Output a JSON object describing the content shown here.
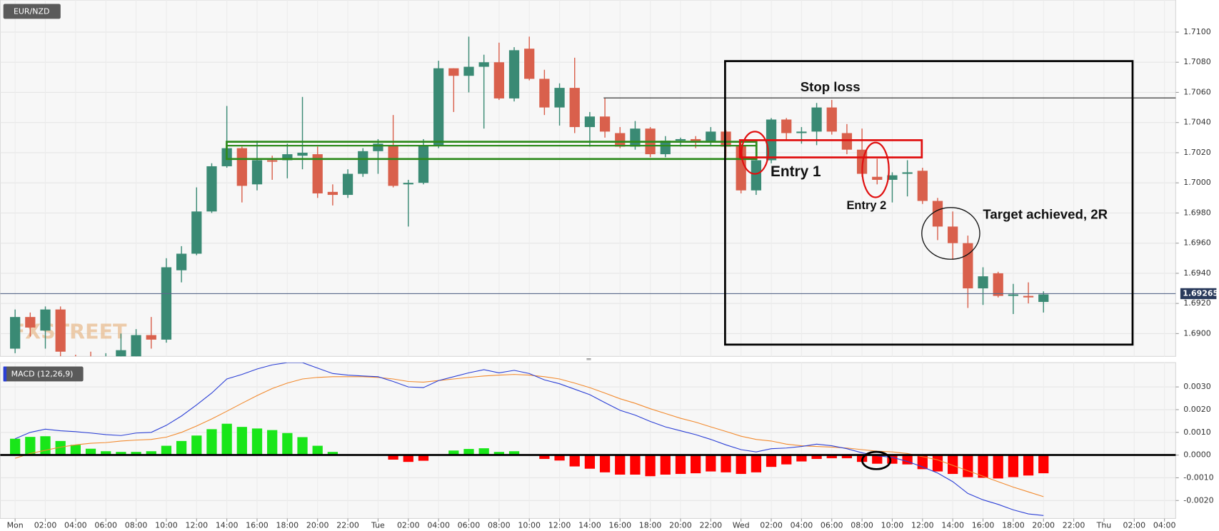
{
  "chart_data": [
    {
      "type": "candlestick",
      "symbol": "EUR/NZD",
      "watermark": "FXSTREET",
      "x": [
        0,
        1,
        2,
        3,
        4,
        5,
        6,
        7,
        8,
        9,
        10,
        11,
        12,
        13,
        14,
        15,
        16,
        17,
        18,
        19,
        20,
        21,
        22,
        23,
        24,
        25,
        26,
        27,
        28,
        29,
        30,
        31,
        32,
        33,
        34,
        35,
        36,
        37,
        38,
        39,
        40,
        41,
        42,
        43,
        44,
        45,
        46,
        47,
        48,
        49,
        50,
        51,
        52,
        53,
        54,
        55,
        56,
        57,
        58,
        59,
        60,
        61,
        62,
        63,
        64,
        65,
        66,
        67,
        68
      ],
      "open": [
        1.689,
        1.6911,
        1.6902,
        1.6916,
        1.6884,
        1.6882,
        1.6878,
        1.688,
        1.6884,
        1.6899,
        1.6896,
        1.6942,
        1.6953,
        1.6981,
        1.7011,
        1.7023,
        1.6999,
        1.7015,
        1.7015,
        1.7018,
        1.7019,
        1.6994,
        1.6992,
        1.7006,
        1.7021,
        1.7025,
        1.6999,
        1.7,
        1.7025,
        1.7076,
        1.7071,
        1.7077,
        1.708,
        1.7056,
        1.7089,
        1.7069,
        1.705,
        1.7063,
        1.7037,
        1.7044,
        1.7033,
        1.7024,
        1.7036,
        1.7019,
        1.7028,
        1.7029,
        1.7027,
        1.7034,
        1.7025,
        1.6995,
        1.7015,
        1.7042,
        1.7033,
        1.7034,
        1.705,
        1.7033,
        1.7022,
        1.7004,
        1.7002,
        1.7006,
        1.7008,
        1.6988,
        1.6971,
        1.696,
        1.693,
        1.694,
        1.6925,
        1.6925,
        1.6921
      ],
      "high": [
        1.6916,
        1.6914,
        1.6918,
        1.6918,
        1.6886,
        1.6888,
        1.6887,
        1.69,
        1.6903,
        1.6911,
        1.695,
        1.6958,
        1.6997,
        1.7013,
        1.7051,
        1.7024,
        1.7028,
        1.7018,
        1.7026,
        1.7057,
        1.7024,
        1.6999,
        1.7009,
        1.7023,
        1.7029,
        1.7045,
        1.7002,
        1.7029,
        1.7081,
        1.7076,
        1.7097,
        1.7085,
        1.7093,
        1.709,
        1.7097,
        1.7075,
        1.7066,
        1.7083,
        1.7047,
        1.7056,
        1.7037,
        1.7041,
        1.7037,
        1.7031,
        1.703,
        1.7031,
        1.7037,
        1.7035,
        1.7027,
        1.7017,
        1.7043,
        1.7043,
        1.7037,
        1.7053,
        1.7055,
        1.7039,
        1.7036,
        1.7016,
        1.7007,
        1.7015,
        1.701,
        1.699,
        1.6981,
        1.6965,
        1.6944,
        1.6941,
        1.6933,
        1.6934,
        1.6928
      ],
      "low": [
        1.6887,
        1.6898,
        1.689,
        1.6885,
        1.6875,
        1.6876,
        1.6875,
        1.6876,
        1.688,
        1.689,
        1.6894,
        1.6934,
        1.6952,
        1.698,
        1.701,
        1.6987,
        1.6995,
        1.7002,
        1.7003,
        1.7009,
        1.699,
        1.6985,
        1.699,
        1.7004,
        1.7006,
        1.6997,
        1.6971,
        1.6999,
        1.7023,
        1.7047,
        1.706,
        1.7036,
        1.7055,
        1.7054,
        1.7068,
        1.7045,
        1.7038,
        1.7033,
        1.7024,
        1.703,
        1.7023,
        1.7022,
        1.7017,
        1.7017,
        1.7024,
        1.7023,
        1.7025,
        1.7017,
        1.6993,
        1.6992,
        1.7013,
        1.7028,
        1.7026,
        1.7025,
        1.7032,
        1.7019,
        1.7004,
        1.6999,
        1.6987,
        1.6991,
        1.6986,
        1.6962,
        1.6949,
        1.6917,
        1.6919,
        1.6924,
        1.6913,
        1.692,
        1.6914
      ],
      "close": [
        1.6911,
        1.6904,
        1.6916,
        1.6888,
        1.6878,
        1.688,
        1.6882,
        1.6889,
        1.6899,
        1.6896,
        1.6944,
        1.6953,
        1.6981,
        1.7011,
        1.7023,
        1.6998,
        1.7015,
        1.7014,
        1.7019,
        1.702,
        1.6993,
        1.6992,
        1.7006,
        1.7021,
        1.7026,
        1.6998,
        1.7,
        1.7025,
        1.7076,
        1.7071,
        1.7077,
        1.708,
        1.7056,
        1.7088,
        1.7069,
        1.705,
        1.7063,
        1.7037,
        1.7044,
        1.7034,
        1.7024,
        1.7036,
        1.7019,
        1.7028,
        1.7029,
        1.7027,
        1.7034,
        1.7024,
        1.6995,
        1.7015,
        1.7042,
        1.7033,
        1.7034,
        1.705,
        1.7034,
        1.7022,
        1.7006,
        1.7002,
        1.7005,
        1.7007,
        1.6988,
        1.6971,
        1.696,
        1.693,
        1.6938,
        1.6925,
        1.6926,
        1.6924,
        1.6926
      ],
      "up_color": "#3a8a74",
      "down_color": "#d9604c",
      "xlim": [
        -0.984,
        76.74
      ],
      "ylim": [
        1.68849,
        1.71187
      ],
      "yticks": [
        {
          "value": 1.69,
          "label": "1.6900"
        },
        {
          "value": 1.692,
          "label": "1.6920"
        },
        {
          "value": 1.694,
          "label": "1.6940"
        },
        {
          "value": 1.696,
          "label": "1.6960"
        },
        {
          "value": 1.698,
          "label": "1.6980"
        },
        {
          "value": 1.7,
          "label": "1.7000"
        },
        {
          "value": 1.702,
          "label": "1.7020"
        },
        {
          "value": 1.704,
          "label": "1.7040"
        },
        {
          "value": 1.706,
          "label": "1.7060"
        },
        {
          "value": 1.708,
          "label": "1.7080"
        },
        {
          "value": 1.71,
          "label": "1.7100"
        }
      ],
      "grid": true,
      "last_price": 1.69265,
      "annotations": [
        "Stop loss",
        "Entry 1",
        "Entry 2",
        "Target achieved, 2R"
      ]
    },
    {
      "type": "macd",
      "title": "MACD (12,26,9)",
      "histogram": [
        0.00072,
        0.0008,
        0.00083,
        0.00062,
        0.00045,
        0.00028,
        0.00017,
        0.00014,
        0.00014,
        0.00017,
        0.00041,
        0.00062,
        0.00086,
        0.00114,
        0.00138,
        0.00124,
        0.00117,
        0.0011,
        0.00097,
        0.00079,
        0.00041,
        0.00014,
        0,
        0,
        0,
        -0.0002,
        -0.0003,
        -0.00025,
        0,
        0.0002,
        0.00027,
        0.0003,
        0.00014,
        0.00017,
        0,
        -0.00017,
        -0.00024,
        -0.0005,
        -0.0006,
        -0.00076,
        -0.00086,
        -0.00086,
        -0.00093,
        -0.00086,
        -0.00083,
        -0.0008,
        -0.00072,
        -0.00076,
        -0.00083,
        -0.00076,
        -0.00052,
        -0.00041,
        -0.00028,
        -0.00017,
        -0.00014,
        -0.00014,
        -0.0003,
        -0.00038,
        -0.00038,
        -0.00041,
        -0.00062,
        -0.00072,
        -0.00083,
        -0.00097,
        -0.001,
        -0.00103,
        -0.00097,
        -0.0009,
        -0.0008
      ],
      "macd_line": [
        0.00072,
        0.001,
        0.00114,
        0.00107,
        0.00103,
        0.00097,
        0.0009,
        0.00086,
        0.00097,
        0.001,
        0.00131,
        0.00172,
        0.00221,
        0.00273,
        0.00335,
        0.00355,
        0.00379,
        0.00397,
        0.00407,
        0.00407,
        0.00383,
        0.00359,
        0.00352,
        0.00348,
        0.00345,
        0.00324,
        0.003,
        0.00297,
        0.00328,
        0.00345,
        0.00362,
        0.00376,
        0.00362,
        0.00373,
        0.00359,
        0.00331,
        0.00314,
        0.0029,
        0.00266,
        0.00231,
        0.00197,
        0.00176,
        0.00148,
        0.00124,
        0.00107,
        0.0009,
        0.00069,
        0.00045,
        0.00024,
        0.00014,
        0.00028,
        0.00031,
        0.00038,
        0.00048,
        0.00041,
        0.00028,
        0.0001,
        -3e-05,
        -0.0001,
        -0.00028,
        -0.00052,
        -0.00079,
        -0.00117,
        -0.00169,
        -0.00197,
        -0.00217,
        -0.00241,
        -0.00259,
        -0.00266
      ],
      "signal_line": [
        -0.00014,
        7e-05,
        0.00021,
        0.00035,
        0.00045,
        0.00052,
        0.00055,
        0.00062,
        0.00066,
        0.00069,
        0.00079,
        0.001,
        0.00128,
        0.00159,
        0.00193,
        0.00228,
        0.00262,
        0.00293,
        0.00317,
        0.00335,
        0.00342,
        0.00345,
        0.00345,
        0.00345,
        0.00342,
        0.00335,
        0.00324,
        0.00321,
        0.00328,
        0.00335,
        0.00342,
        0.00348,
        0.00352,
        0.00355,
        0.00352,
        0.00345,
        0.00335,
        0.00317,
        0.00297,
        0.00273,
        0.00248,
        0.00228,
        0.00204,
        0.00183,
        0.00162,
        0.00145,
        0.00124,
        0.00104,
        0.00083,
        0.00069,
        0.00062,
        0.00048,
        0.00041,
        0.00038,
        0.00035,
        0.00031,
        0.00024,
        0.00017,
        0.00014,
        7e-05,
        -7e-05,
        -0.00021,
        -0.00045,
        -0.00069,
        -0.00093,
        -0.00117,
        -0.00141,
        -0.00162,
        -0.00183
      ],
      "positive_color": "#19e619",
      "negative_color": "#ff0000",
      "macd_color": "#2b3fd6",
      "signal_color": "#f28a2e",
      "ylim": [
        -0.00279,
        0.00407
      ],
      "yticks": [
        {
          "value": -0.002,
          "label": "-0.0020"
        },
        {
          "value": -0.001,
          "label": "-0.0010"
        },
        {
          "value": 0,
          "label": "0.0000"
        },
        {
          "value": 0.001,
          "label": "0.0010"
        },
        {
          "value": 0.002,
          "label": "0.0020"
        },
        {
          "value": 0.003,
          "label": "0.0030"
        }
      ],
      "xticks": [
        {
          "value": 0,
          "label": "Mon"
        },
        {
          "value": 2,
          "label": "02:00"
        },
        {
          "value": 4,
          "label": "04:00"
        },
        {
          "value": 6,
          "label": "06:00"
        },
        {
          "value": 8,
          "label": "08:00"
        },
        {
          "value": 10,
          "label": "10:00"
        },
        {
          "value": 12,
          "label": "12:00"
        },
        {
          "value": 14,
          "label": "14:00"
        },
        {
          "value": 16,
          "label": "16:00"
        },
        {
          "value": 18,
          "label": "18:00"
        },
        {
          "value": 20,
          "label": "20:00"
        },
        {
          "value": 22,
          "label": "22:00"
        },
        {
          "value": 24,
          "label": "Tue"
        },
        {
          "value": 26,
          "label": "02:00"
        },
        {
          "value": 28,
          "label": "04:00"
        },
        {
          "value": 30,
          "label": "06:00"
        },
        {
          "value": 32,
          "label": "08:00"
        },
        {
          "value": 34,
          "label": "10:00"
        },
        {
          "value": 36,
          "label": "12:00"
        },
        {
          "value": 38,
          "label": "14:00"
        },
        {
          "value": 40,
          "label": "16:00"
        },
        {
          "value": 42,
          "label": "18:00"
        },
        {
          "value": 44,
          "label": "20:00"
        },
        {
          "value": 46,
          "label": "22:00"
        },
        {
          "value": 48,
          "label": "Wed"
        },
        {
          "value": 50,
          "label": "02:00"
        },
        {
          "value": 52,
          "label": "04:00"
        },
        {
          "value": 54,
          "label": "06:00"
        },
        {
          "value": 56,
          "label": "08:00"
        },
        {
          "value": 58,
          "label": "10:00"
        },
        {
          "value": 60,
          "label": "12:00"
        },
        {
          "value": 62,
          "label": "14:00"
        },
        {
          "value": 64,
          "label": "16:00"
        },
        {
          "value": 66,
          "label": "18:00"
        },
        {
          "value": 68,
          "label": "20:00"
        },
        {
          "value": 70,
          "label": "22:00"
        },
        {
          "value": 72,
          "label": "Thu"
        },
        {
          "value": 74,
          "label": "02:00"
        },
        {
          "value": 76,
          "label": "04:00"
        }
      ],
      "grid": true
    }
  ]
}
